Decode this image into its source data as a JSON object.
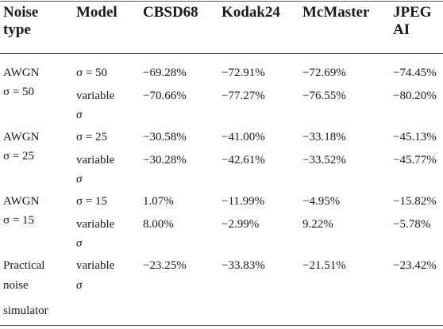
{
  "table": {
    "headers": {
      "noise_type": [
        "Noise",
        "type"
      ],
      "model": "Model",
      "cbsd68": "CBSD68",
      "kodak24": "Kodak24",
      "mcmaster": "McMaster",
      "jpegai": [
        "JPEG",
        "AI"
      ]
    },
    "groups": [
      {
        "noise": [
          "AWGN",
          "σ = 50"
        ],
        "rows": [
          {
            "model": [
              "σ = 50"
            ],
            "values": [
              "−69.28%",
              "−72.91%",
              "−72.69%",
              "−74.45%"
            ]
          },
          {
            "model": [
              "variable",
              "σ"
            ],
            "values": [
              "−70.66%",
              "−77.27%",
              "−76.55%",
              "−80.20%"
            ]
          }
        ]
      },
      {
        "noise": [
          "AWGN",
          "σ = 25"
        ],
        "rows": [
          {
            "model": [
              "σ = 25"
            ],
            "values": [
              "−30.58%",
              "−41.00%",
              "−33.18%",
              "−45.13%"
            ]
          },
          {
            "model": [
              "variable",
              "σ"
            ],
            "values": [
              "−30.28%",
              "−42.61%",
              "−33.52%",
              "−45.77%"
            ]
          }
        ]
      },
      {
        "noise": [
          "AWGN",
          "σ = 15"
        ],
        "rows": [
          {
            "model": [
              "σ = 15"
            ],
            "values": [
              "1.07%",
              "−11.99%",
              "−4.95%",
              "−15.82%"
            ]
          },
          {
            "model": [
              "variable",
              "σ"
            ],
            "values": [
              "8.00%",
              "−2.99%",
              "9.22%",
              "−5.78%"
            ]
          }
        ]
      },
      {
        "noise": [
          "Practical",
          "noise",
          "simulator"
        ],
        "rows": [
          {
            "model": [
              "variable",
              "σ"
            ],
            "values": [
              "−23.25%",
              "−33.83%",
              "−21.51%",
              "−23.42%"
            ]
          }
        ]
      }
    ]
  }
}
